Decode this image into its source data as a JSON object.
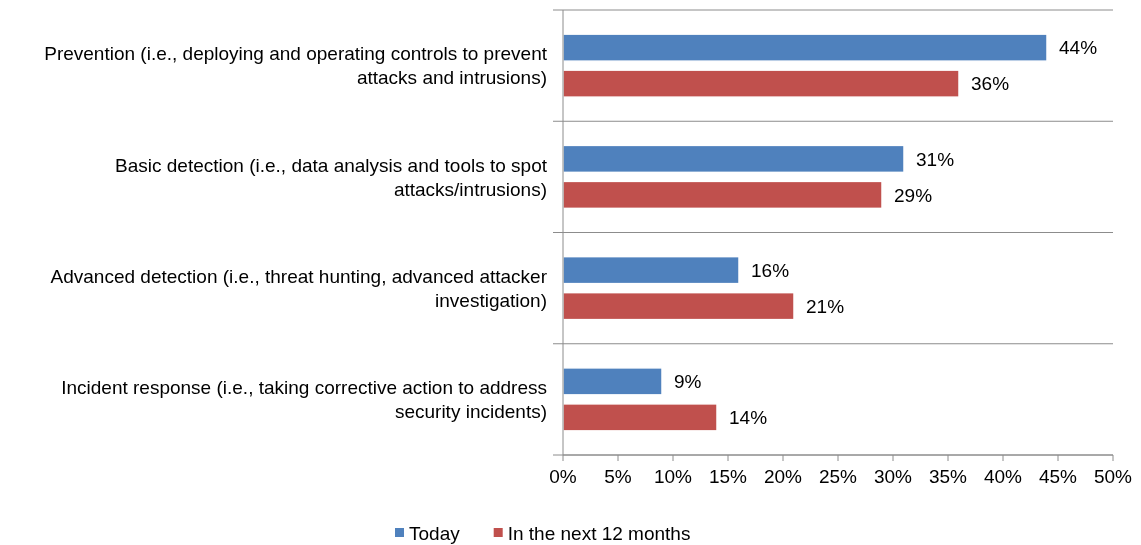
{
  "chart_data": {
    "type": "bar",
    "orientation": "horizontal",
    "categories": [
      "Prevention (i.e., deploying and operating controls to prevent attacks and intrusions)",
      "Basic detection (i.e., data analysis and tools to spot attacks/intrusions)",
      "Advanced detection (i.e., threat hunting, advanced attacker investigation)",
      "Incident response (i.e., taking corrective action to address security incidents)"
    ],
    "series": [
      {
        "name": "Today",
        "color": "#4f81bd",
        "values": [
          44,
          31,
          16,
          9
        ],
        "value_labels": [
          "44%",
          "31%",
          "16%",
          "9%"
        ]
      },
      {
        "name": "In the next 12 months",
        "color": "#c0504d",
        "values": [
          36,
          29,
          21,
          14
        ],
        "value_labels": [
          "36%",
          "29%",
          "21%",
          "14%"
        ]
      }
    ],
    "xlim": [
      0,
      50
    ],
    "xticks": [
      {
        "value": 0,
        "label": "0%"
      },
      {
        "value": 5,
        "label": "5%"
      },
      {
        "value": 10,
        "label": "10%"
      },
      {
        "value": 15,
        "label": "15%"
      },
      {
        "value": 20,
        "label": "20%"
      },
      {
        "value": 25,
        "label": "25%"
      },
      {
        "value": 30,
        "label": "30%"
      },
      {
        "value": 35,
        "label": "35%"
      },
      {
        "value": 40,
        "label": "40%"
      },
      {
        "value": 45,
        "label": "45%"
      },
      {
        "value": 50,
        "label": "50%"
      }
    ],
    "grid": "y",
    "legend": "bottom"
  }
}
